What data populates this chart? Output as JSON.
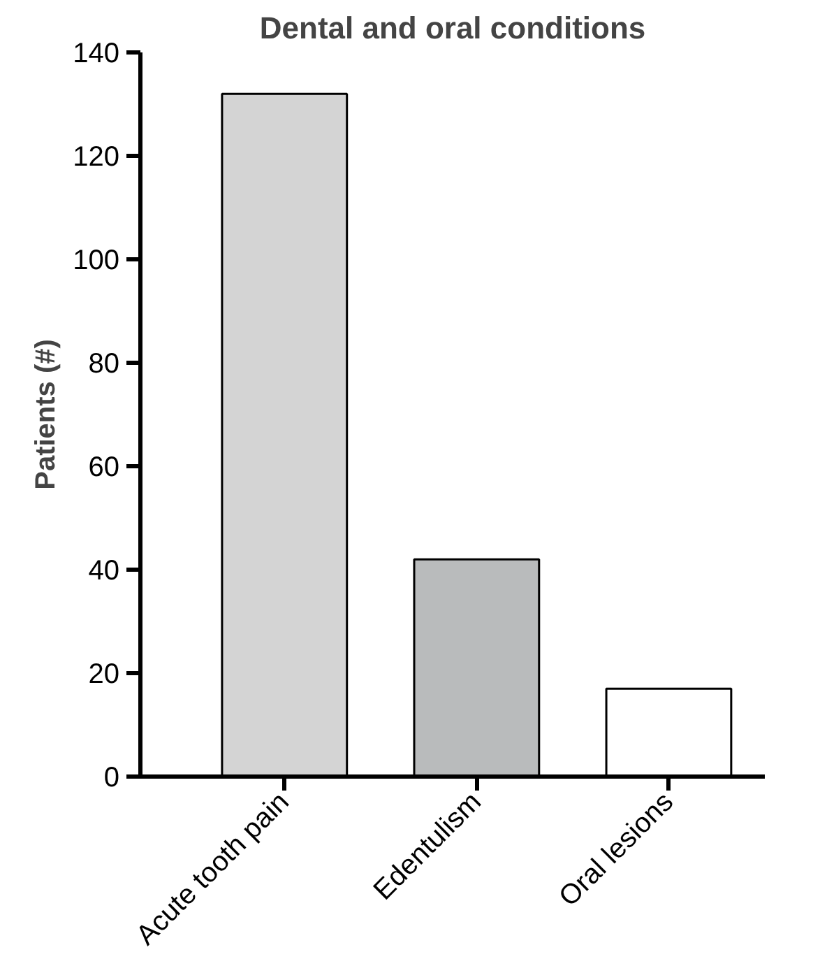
{
  "chart_data": {
    "type": "bar",
    "title": "Dental and oral conditions",
    "ylabel": "Patients (#)",
    "categories": [
      "Acute tooth pain",
      "Edentulism",
      "Oral lesions"
    ],
    "values": [
      132,
      42,
      17
    ],
    "colors": [
      "#d4d4d4",
      "#b9bbbc",
      "#ffffff"
    ],
    "ylim": [
      0,
      140
    ],
    "yticks": [
      0,
      20,
      40,
      60,
      80,
      100,
      120,
      140
    ],
    "grid": false
  }
}
